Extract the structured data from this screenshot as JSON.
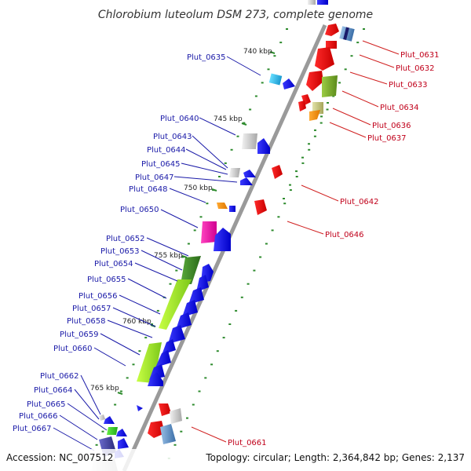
{
  "title": "Chlorobium luteolum DSM 273, complete genome",
  "footer": {
    "accession": "Accession: NC_007512",
    "summary": "Topology: circular; Length: 2,364,842 bp; Genes: 2,137"
  },
  "colors": {
    "backbone": "#9a9a9a",
    "left_label": "#1a1aa8",
    "right_label": "#c0001a",
    "tick": "#2e8b2e"
  },
  "kbp_marks": [
    "740 kbp",
    "745 kbp",
    "750 kbp",
    "755 kbp",
    "760 kbp",
    "765 kbp"
  ],
  "left_genes": [
    "Plut_0635",
    "Plut_0640",
    "Plut_0643",
    "Plut_0644",
    "Plut_0645",
    "Plut_0647",
    "Plut_0648",
    "Plut_0650",
    "Plut_0652",
    "Plut_0653",
    "Plut_0654",
    "Plut_0655",
    "Plut_0656",
    "Plut_0657",
    "Plut_0658",
    "Plut_0659",
    "Plut_0660",
    "Plut_0662",
    "Plut_0664",
    "Plut_0665",
    "Plut_0666",
    "Plut_0667"
  ],
  "right_genes": [
    "Plut_0631",
    "Plut_0632",
    "Plut_0633",
    "Plut_0634",
    "Plut_0636",
    "Plut_0637",
    "Plut_0642",
    "Plut_0646",
    "Plut_0661"
  ]
}
